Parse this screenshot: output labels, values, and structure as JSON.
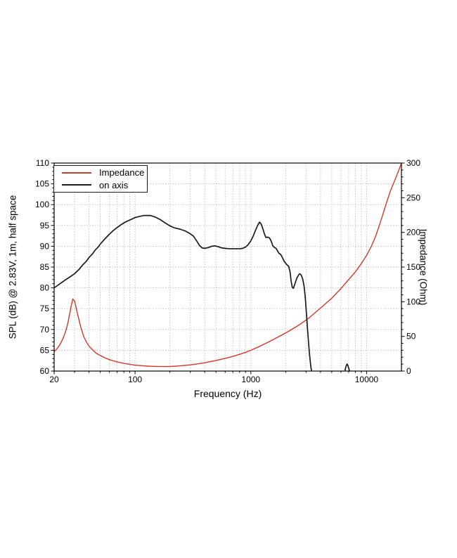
{
  "figure": {
    "background": "#ffffff",
    "grid_color": "#b0b0b0",
    "spine_color": "#000000"
  },
  "chart_data": {
    "type": "line",
    "title": "",
    "xlabel": "Frequency (Hz)",
    "ylabel_left": "SPL (dB) @ 2.83V, 1m, half space",
    "ylabel_right": "Impedance (Ohm)",
    "x_scale": "log",
    "x_range": [
      20,
      20000
    ],
    "x_major_ticks": [
      20,
      100,
      1000,
      10000
    ],
    "y_left_range": [
      60,
      110
    ],
    "y_left_major_step": 5,
    "y_left_minor_step": 1,
    "y_right_range": [
      0,
      300
    ],
    "y_right_major_step": 50,
    "y_right_minor_step": 10,
    "grid": true,
    "legend_position": "top-left",
    "legend": [
      {
        "label": "Impedance",
        "color": "#d4372b"
      },
      {
        "label": "on axis",
        "color": "#1a1a1a"
      }
    ],
    "series": [
      {
        "name": "Impedance",
        "axis": "right",
        "unit": "Ohm",
        "color": "#d4372b",
        "width": 1.4,
        "segments": [
          [
            [
              20,
              28
            ],
            [
              21,
              31.5
            ],
            [
              22,
              36
            ],
            [
              23,
              41.5
            ],
            [
              24,
              48
            ],
            [
              25,
              56
            ],
            [
              26,
              66
            ],
            [
              27,
              79
            ],
            [
              28,
              93
            ],
            [
              29,
              104
            ],
            [
              30,
              101
            ],
            [
              31,
              91
            ],
            [
              32,
              81
            ],
            [
              34,
              63
            ],
            [
              36,
              50
            ],
            [
              38,
              42
            ],
            [
              40,
              36
            ],
            [
              43,
              30.5
            ],
            [
              46,
              26
            ],
            [
              50,
              22.5
            ],
            [
              55,
              19
            ],
            [
              60,
              16.5
            ],
            [
              65,
              14.7
            ],
            [
              70,
              13.2
            ],
            [
              80,
              11.1
            ],
            [
              90,
              9.7
            ],
            [
              100,
              8.6
            ],
            [
              115,
              7.7
            ],
            [
              130,
              7.1
            ],
            [
              150,
              6.7
            ],
            [
              175,
              6.5
            ],
            [
              200,
              6.6
            ],
            [
              230,
              7.2
            ],
            [
              260,
              7.9
            ],
            [
              300,
              8.9
            ],
            [
              350,
              10.4
            ],
            [
              400,
              12
            ],
            [
              450,
              13.7
            ],
            [
              500,
              15.3
            ],
            [
              600,
              18.3
            ],
            [
              700,
              21.2
            ],
            [
              800,
              24.1
            ],
            [
              900,
              27
            ],
            [
              1000,
              30
            ],
            [
              1200,
              35.8
            ],
            [
              1400,
              41.3
            ],
            [
              1600,
              46.4
            ],
            [
              1800,
              50.9
            ],
            [
              2000,
              55
            ],
            [
              2200,
              59
            ],
            [
              2500,
              64.5
            ],
            [
              2800,
              70
            ],
            [
              3200,
              77
            ],
            [
              3700,
              86
            ],
            [
              4200,
              94
            ],
            [
              5000,
              105
            ],
            [
              6000,
              119
            ],
            [
              7000,
              132
            ],
            [
              8000,
              143
            ],
            [
              9000,
              155
            ],
            [
              10000,
              167
            ],
            [
              11000,
              180
            ],
            [
              12000,
              195
            ],
            [
              13000,
              212
            ],
            [
              14000,
              229
            ],
            [
              15000,
              245
            ],
            [
              16000,
              259
            ],
            [
              17000,
              270
            ],
            [
              18000,
              280
            ],
            [
              19000,
              290
            ],
            [
              20000,
              300
            ]
          ]
        ]
      },
      {
        "name": "on axis",
        "axis": "left",
        "unit": "dB",
        "color": "#1a1a1a",
        "width": 1.7,
        "segments": [
          [
            [
              20,
              80
            ],
            [
              22,
              80.8
            ],
            [
              25,
              81.9
            ],
            [
              28,
              82.8
            ],
            [
              30,
              83.4
            ],
            [
              33,
              84.5
            ],
            [
              35,
              85.4
            ],
            [
              38,
              86.4
            ],
            [
              40,
              87.3
            ],
            [
              43,
              88.2
            ],
            [
              45,
              89
            ],
            [
              48,
              89.8
            ],
            [
              50,
              90.5
            ],
            [
              55,
              91.8
            ],
            [
              60,
              92.9
            ],
            [
              65,
              93.8
            ],
            [
              70,
              94.5
            ],
            [
              75,
              95.1
            ],
            [
              80,
              95.6
            ],
            [
              85,
              96
            ],
            [
              90,
              96.3
            ],
            [
              95,
              96.6
            ],
            [
              100,
              96.9
            ],
            [
              110,
              97.2
            ],
            [
              120,
              97.4
            ],
            [
              135,
              97.4
            ],
            [
              150,
              97
            ],
            [
              165,
              96.4
            ],
            [
              180,
              95.7
            ],
            [
              200,
              94.9
            ],
            [
              220,
              94.4
            ],
            [
              245,
              94.1
            ],
            [
              270,
              93.7
            ],
            [
              300,
              93
            ],
            [
              320,
              92.4
            ],
            [
              340,
              91.3
            ],
            [
              360,
              90.2
            ],
            [
              380,
              89.6
            ],
            [
              400,
              89.5
            ],
            [
              430,
              89.7
            ],
            [
              460,
              90
            ],
            [
              490,
              90.1
            ],
            [
              520,
              89.9
            ],
            [
              560,
              89.6
            ],
            [
              600,
              89.5
            ],
            [
              650,
              89.4
            ],
            [
              700,
              89.4
            ],
            [
              750,
              89.4
            ],
            [
              800,
              89.4
            ],
            [
              850,
              89.5
            ],
            [
              900,
              89.8
            ],
            [
              950,
              90.4
            ],
            [
              1000,
              91.3
            ],
            [
              1050,
              92.5
            ],
            [
              1100,
              93.9
            ],
            [
              1150,
              95.1
            ],
            [
              1190,
              95.8
            ],
            [
              1230,
              95.3
            ],
            [
              1270,
              94.2
            ],
            [
              1310,
              93
            ],
            [
              1350,
              92.1
            ],
            [
              1400,
              92.2
            ],
            [
              1450,
              92
            ],
            [
              1500,
              91.2
            ],
            [
              1550,
              90.1
            ],
            [
              1600,
              89.7
            ],
            [
              1650,
              89.5
            ],
            [
              1700,
              88.9
            ],
            [
              1750,
              88.3
            ],
            [
              1800,
              88.1
            ],
            [
              1850,
              87.6
            ],
            [
              1900,
              86.9
            ],
            [
              1950,
              86.3
            ],
            [
              2000,
              85.9
            ],
            [
              2060,
              85.5
            ],
            [
              2120,
              85.2
            ],
            [
              2180,
              83.9
            ],
            [
              2230,
              81.6
            ],
            [
              2280,
              80.1
            ],
            [
              2330,
              79.9
            ],
            [
              2400,
              80.9
            ],
            [
              2500,
              82.4
            ],
            [
              2600,
              83.2
            ],
            [
              2650,
              83.4
            ],
            [
              2720,
              83.1
            ],
            [
              2800,
              82.2
            ],
            [
              2880,
              80.5
            ],
            [
              2950,
              77.8
            ],
            [
              3020,
              74
            ],
            [
              3100,
              69.5
            ],
            [
              3200,
              64.5
            ],
            [
              3300,
              61
            ],
            [
              3400,
              59
            ]
          ],
          [
            [
              6450,
              59.4
            ],
            [
              6550,
              60.5
            ],
            [
              6650,
              61.2
            ],
            [
              6780,
              61.7
            ],
            [
              6900,
              61.3
            ],
            [
              7050,
              60.4
            ],
            [
              7200,
              59.4
            ]
          ]
        ]
      }
    ]
  }
}
